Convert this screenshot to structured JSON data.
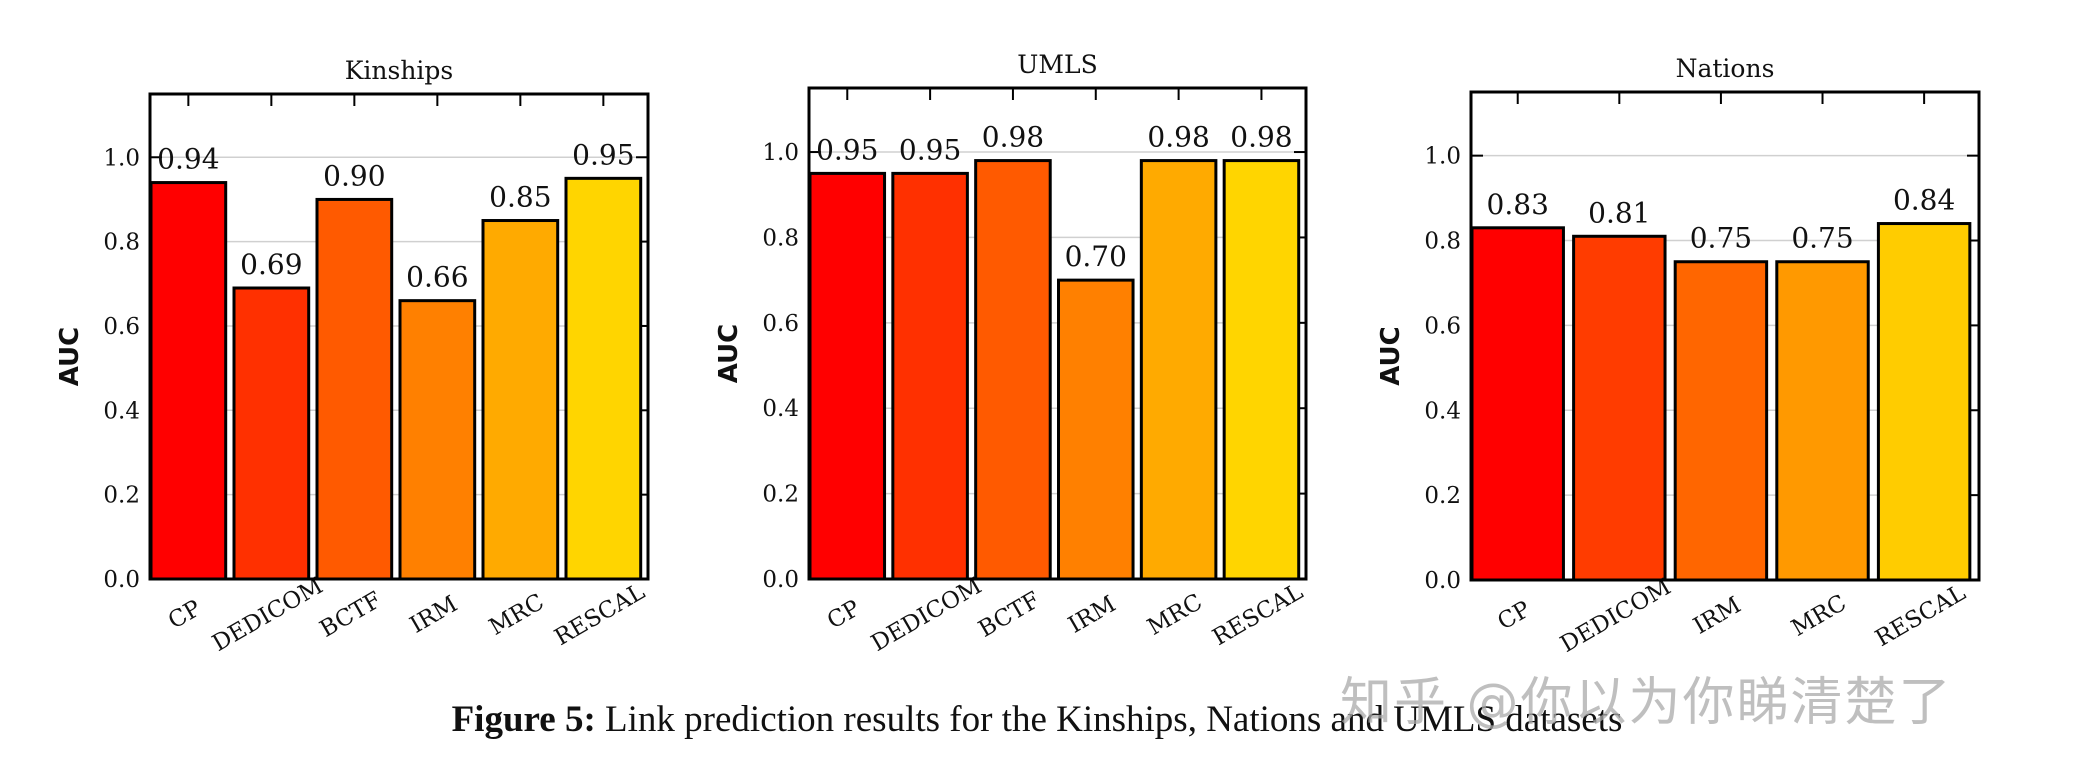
{
  "chart_data": [
    {
      "type": "bar",
      "title": "Kinships",
      "ylabel": "AUC",
      "xlabel": "",
      "categories": [
        "CP",
        "DEDICOM",
        "BCTF",
        "IRM",
        "MRC",
        "RESCAL"
      ],
      "values": [
        0.94,
        0.69,
        0.9,
        0.66,
        0.85,
        0.95
      ],
      "value_labels": [
        "0.94",
        "0.69",
        "0.90",
        "0.66",
        "0.85",
        "0.95"
      ],
      "colors": [
        "#ff0000",
        "#ff3000",
        "#ff5a00",
        "#ff8000",
        "#ffaa00",
        "#ffd500"
      ],
      "ylim": [
        0,
        1.15
      ],
      "yticks": [
        "0.0",
        "0.2",
        "0.4",
        "0.6",
        "0.8",
        "1.0"
      ],
      "grid": true
    },
    {
      "type": "bar",
      "title": "UMLS",
      "ylabel": "AUC",
      "xlabel": "",
      "categories": [
        "CP",
        "DEDICOM",
        "BCTF",
        "IRM",
        "MRC",
        "RESCAL"
      ],
      "values": [
        0.95,
        0.95,
        0.98,
        0.7,
        0.98,
        0.98
      ],
      "value_labels": [
        "0.95",
        "0.95",
        "0.98",
        "0.70",
        "0.98",
        "0.98"
      ],
      "colors": [
        "#ff0000",
        "#ff3000",
        "#ff5a00",
        "#ff8000",
        "#ffaa00",
        "#ffd500"
      ],
      "ylim": [
        0,
        1.15
      ],
      "yticks": [
        "0.0",
        "0.2",
        "0.4",
        "0.6",
        "0.8",
        "1.0"
      ],
      "grid": true
    },
    {
      "type": "bar",
      "title": "Nations",
      "ylabel": "AUC",
      "xlabel": "",
      "categories": [
        "CP",
        "DEDICOM",
        "IRM",
        "MRC",
        "RESCAL"
      ],
      "values": [
        0.83,
        0.81,
        0.75,
        0.75,
        0.84
      ],
      "value_labels": [
        "0.83",
        "0.81",
        "0.75",
        "0.75",
        "0.84"
      ],
      "colors": [
        "#ff0000",
        "#ff3c00",
        "#ff6600",
        "#ff9900",
        "#ffcc00"
      ],
      "ylim": [
        0,
        1.15
      ],
      "yticks": [
        "0.0",
        "0.2",
        "0.4",
        "0.6",
        "0.8",
        "1.0"
      ],
      "grid": true
    }
  ],
  "caption": {
    "label": "Figure 5:",
    "text": " Link prediction results for the Kinships, Nations and UMLS datasets"
  },
  "watermark": "知乎 @你以为你睇清楚了"
}
